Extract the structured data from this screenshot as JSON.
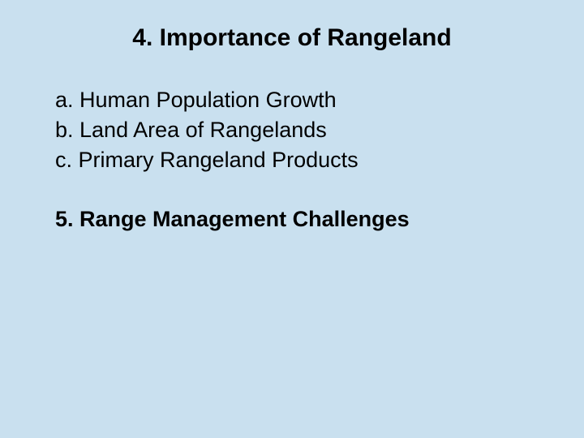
{
  "slide": {
    "title": "4. Importance of Rangeland",
    "items": [
      {
        "text": "a. Human Population Growth",
        "bold": false
      },
      {
        "text": "b. Land Area of Rangelands",
        "bold": false
      },
      {
        "text": "c. Primary Rangeland Products",
        "bold": false
      }
    ],
    "section2": {
      "prefix": "5",
      "text": ". Range Management Challenges"
    }
  },
  "colors": {
    "background": "#c9e0ef",
    "text": "#000000"
  },
  "typography": {
    "title_fontsize": 30,
    "body_fontsize": 27,
    "font_family": "Arial"
  }
}
